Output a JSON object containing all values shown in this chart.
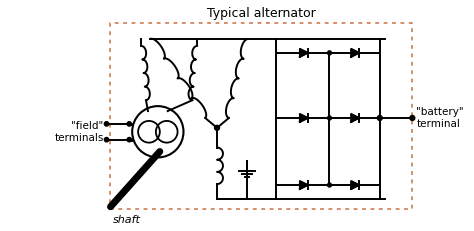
{
  "title": "Typical alternator",
  "label_field": "\"field\"\nterminals",
  "label_shaft": "shaft",
  "label_battery": "\"battery\"\nterminal",
  "bg_color": "#ffffff",
  "line_color": "#000000",
  "box_color": "#c87040",
  "figsize": [
    4.74,
    2.31
  ],
  "dpi": 100,
  "title_fontsize": 9,
  "label_fontsize": 7.5,
  "shaft_fontsize": 8
}
